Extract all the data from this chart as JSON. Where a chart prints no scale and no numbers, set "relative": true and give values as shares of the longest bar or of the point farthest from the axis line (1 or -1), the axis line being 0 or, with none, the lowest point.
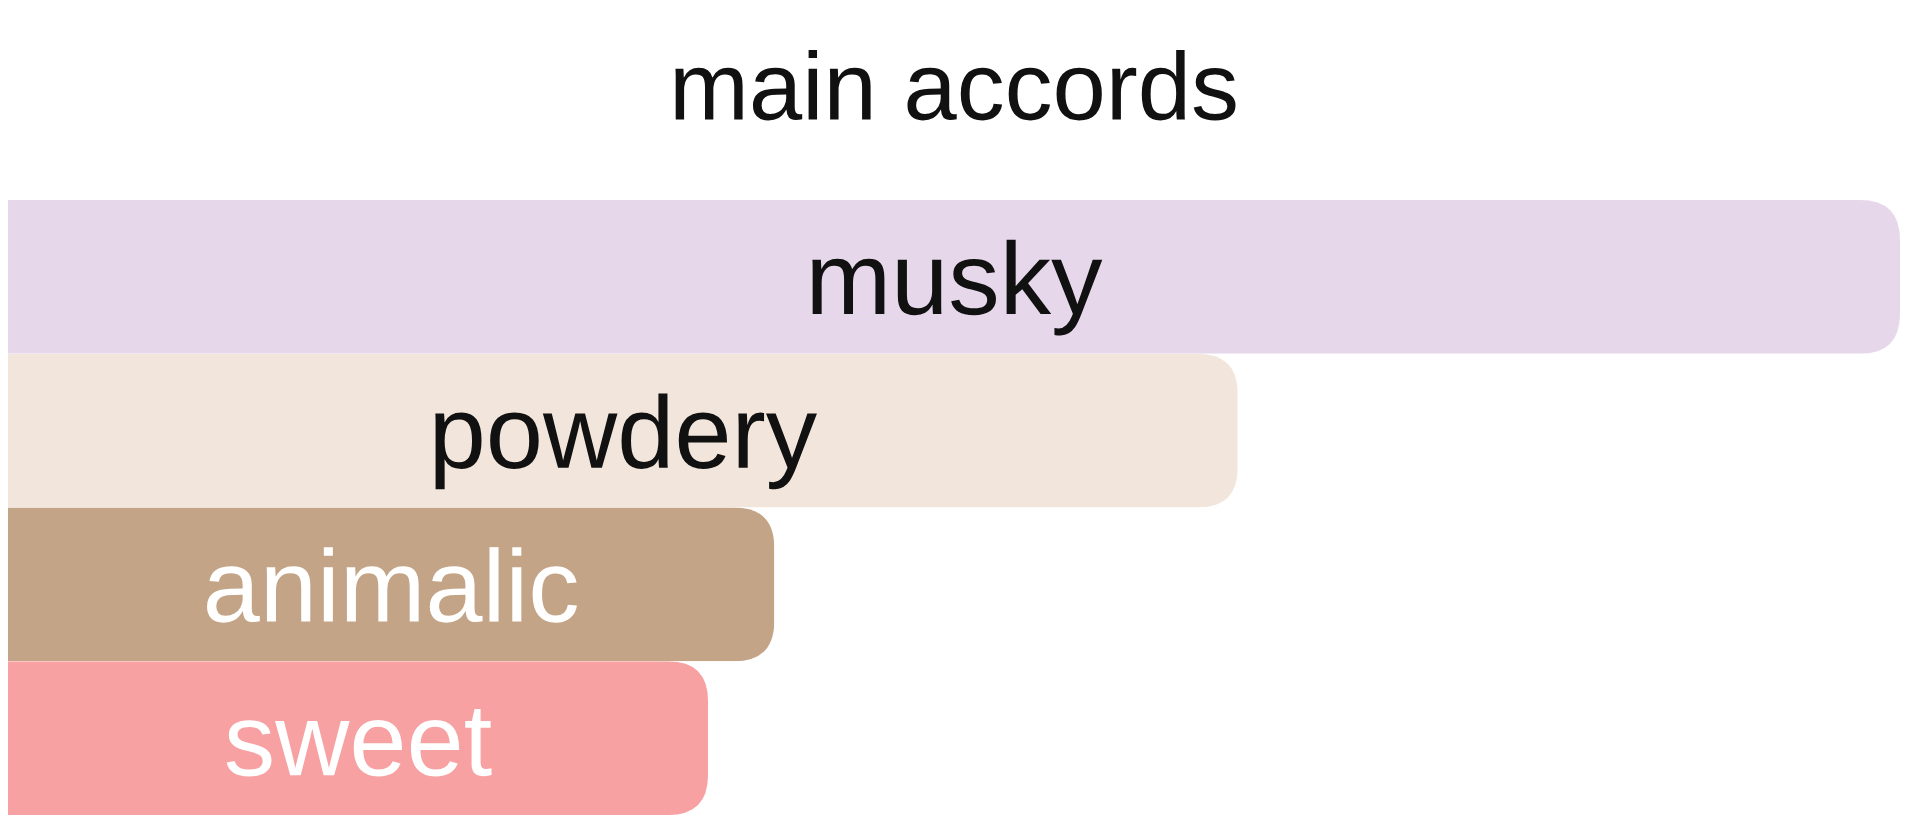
{
  "chart_data": {
    "type": "bar",
    "title": "main accords",
    "orientation": "horizontal",
    "relative": true,
    "tick_labels": false,
    "categories": [
      "musky",
      "powdery",
      "animalic",
      "sweet"
    ],
    "values": [
      1,
      0.65,
      0.405,
      0.37
    ],
    "colors": [
      "#e6d8ea",
      "#f2e6dc",
      "#c4a486",
      "#f7a1a3"
    ]
  }
}
